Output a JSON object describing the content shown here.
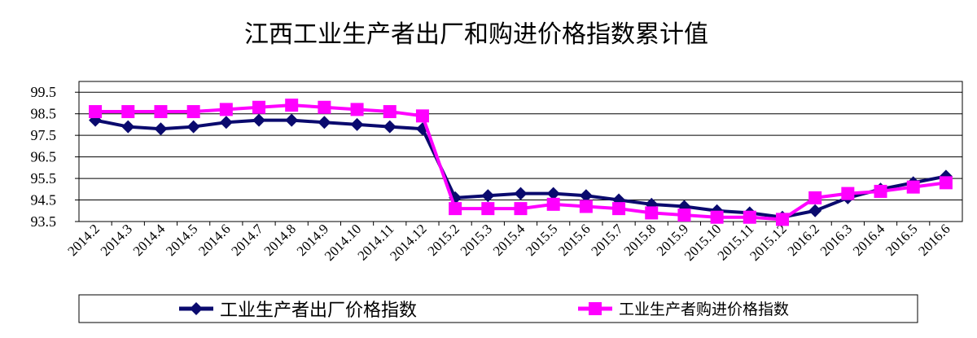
{
  "chart_data": {
    "type": "line",
    "title": "江西工业生产者出厂和购进价格指数累计值",
    "xlabel": "",
    "ylabel": "",
    "ylim": [
      93.5,
      100.0
    ],
    "yticks": [
      "99.5",
      "98.5",
      "97.5",
      "96.5",
      "95.5",
      "94.5",
      "93.5"
    ],
    "grid": "horizontal",
    "legend": "bottom",
    "categories": [
      "2014.2",
      "2014.3",
      "2014.4",
      "2014.5",
      "2014.6",
      "2014.7",
      "2014.8",
      "2014.9",
      "2014.10",
      "2014.11",
      "2014.12",
      "2015.2",
      "2015.3",
      "2015.4",
      "2015.5",
      "2015.6",
      "2015.7",
      "2015.8",
      "2015.9",
      "2015.10",
      "2015.11",
      "2015.12",
      "2016.2",
      "2016.3",
      "2016.4",
      "2016.5",
      "2016.6"
    ],
    "series": [
      {
        "name": "工业生产者出厂价格指数",
        "color": "#0a0a6e",
        "marker": "diamond",
        "values": [
          98.2,
          97.9,
          97.8,
          97.9,
          98.1,
          98.2,
          98.2,
          98.1,
          98.0,
          97.9,
          97.8,
          94.6,
          94.7,
          94.8,
          94.8,
          94.7,
          94.5,
          94.3,
          94.2,
          94.0,
          93.9,
          93.7,
          94.0,
          94.6,
          95.0,
          95.3,
          95.6
        ]
      },
      {
        "name": "工业生产者购进价格指数",
        "color": "#ff00ff",
        "marker": "square",
        "values": [
          98.6,
          98.6,
          98.6,
          98.6,
          98.7,
          98.8,
          98.9,
          98.8,
          98.7,
          98.6,
          98.4,
          94.1,
          94.1,
          94.1,
          94.3,
          94.2,
          94.1,
          93.9,
          93.8,
          93.7,
          93.7,
          93.6,
          94.6,
          94.8,
          94.9,
          95.1,
          95.3
        ]
      }
    ]
  }
}
